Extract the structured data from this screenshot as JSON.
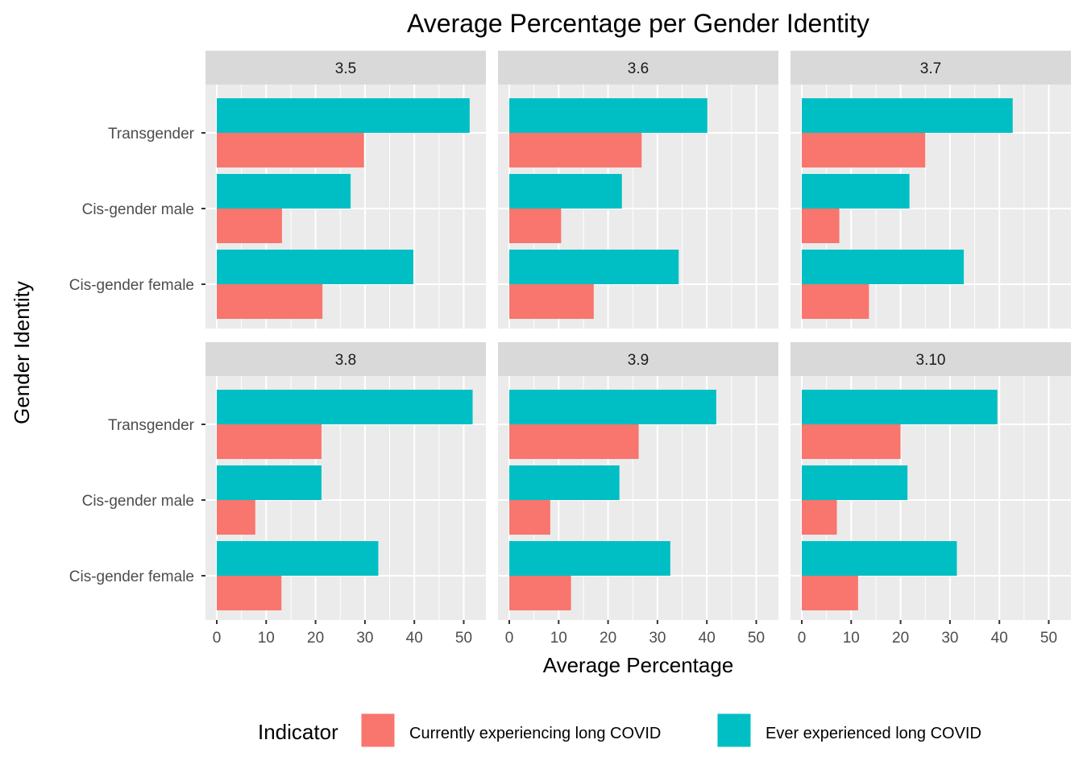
{
  "chart_data": {
    "type": "bar",
    "orientation": "horizontal",
    "title": "Average Percentage per Gender Identity",
    "xlabel": "Average Percentage",
    "ylabel": "Gender Identity",
    "xlim": [
      0,
      54
    ],
    "xticks": [
      0,
      10,
      20,
      30,
      40,
      50
    ],
    "categories": [
      "Transgender",
      "Cis-gender male",
      "Cis-gender female"
    ],
    "grid": true,
    "legend": {
      "title": "Indicator",
      "position": "bottom",
      "entries": [
        {
          "name": "Currently experiencing long COVID",
          "color": "#F8766D"
        },
        {
          "name": "Ever experienced long COVID",
          "color": "#00BFC4"
        }
      ]
    },
    "panels": [
      {
        "label": "3.5",
        "series": [
          {
            "name": "Currently experiencing long COVID",
            "values": [
              29.8,
              13.2,
              21.4
            ]
          },
          {
            "name": "Ever experienced long COVID",
            "values": [
              51.2,
              27.1,
              39.8
            ]
          }
        ]
      },
      {
        "label": "3.6",
        "series": [
          {
            "name": "Currently experiencing long COVID",
            "values": [
              26.8,
              10.5,
              17.1
            ]
          },
          {
            "name": "Ever experienced long COVID",
            "values": [
              40.1,
              22.8,
              34.3
            ]
          }
        ]
      },
      {
        "label": "3.7",
        "series": [
          {
            "name": "Currently experiencing long COVID",
            "values": [
              25.0,
              7.6,
              13.6
            ]
          },
          {
            "name": "Ever experienced long COVID",
            "values": [
              42.7,
              21.8,
              32.8
            ]
          }
        ]
      },
      {
        "label": "3.8",
        "series": [
          {
            "name": "Currently experiencing long COVID",
            "values": [
              21.2,
              7.8,
              13.1
            ]
          },
          {
            "name": "Ever experienced long COVID",
            "values": [
              51.8,
              21.2,
              32.7
            ]
          }
        ]
      },
      {
        "label": "3.9",
        "series": [
          {
            "name": "Currently experiencing long COVID",
            "values": [
              26.2,
              8.3,
              12.5
            ]
          },
          {
            "name": "Ever experienced long COVID",
            "values": [
              41.9,
              22.3,
              32.6
            ]
          }
        ]
      },
      {
        "label": "3.10",
        "series": [
          {
            "name": "Currently experiencing long COVID",
            "values": [
              20.0,
              7.1,
              11.4
            ]
          },
          {
            "name": "Ever experienced long COVID",
            "values": [
              39.6,
              21.4,
              31.4
            ]
          }
        ]
      }
    ]
  }
}
